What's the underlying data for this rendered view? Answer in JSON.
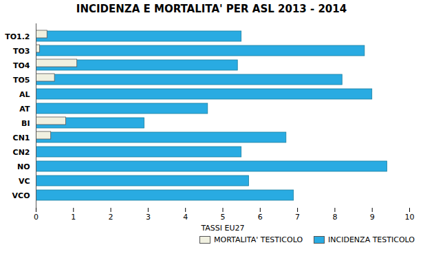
{
  "chart_data": {
    "type": "bar",
    "orientation": "horizontal",
    "title": "INCIDENZA E MORTALITA' PER ASL 2013 - 2014",
    "xlabel": "TASSI EU27",
    "categories": [
      "VCO",
      "VC",
      "NO",
      "CN2",
      "CN1",
      "BI",
      "AT",
      "AL",
      "TO5",
      "TO4",
      "TO3",
      "TO1.2"
    ],
    "series": [
      {
        "name": "INCIDENZA TESTICOLO",
        "color": "#29ABE2",
        "values": [
          6.9,
          5.7,
          9.4,
          5.5,
          6.7,
          2.9,
          4.6,
          9.0,
          8.2,
          5.4,
          8.8,
          5.5
        ]
      },
      {
        "name": "MORTALITA' TESTICOLO",
        "color": "#F0F0E0",
        "values": [
          0.0,
          0.0,
          0.0,
          0.0,
          0.4,
          0.8,
          0.0,
          0.0,
          0.5,
          1.1,
          0.1,
          0.3
        ]
      }
    ],
    "xlim": [
      0,
      10
    ],
    "xticks": [
      0,
      1,
      2,
      3,
      4,
      5,
      6,
      7,
      8,
      9,
      10
    ],
    "grid": false,
    "legend": "lower right"
  }
}
